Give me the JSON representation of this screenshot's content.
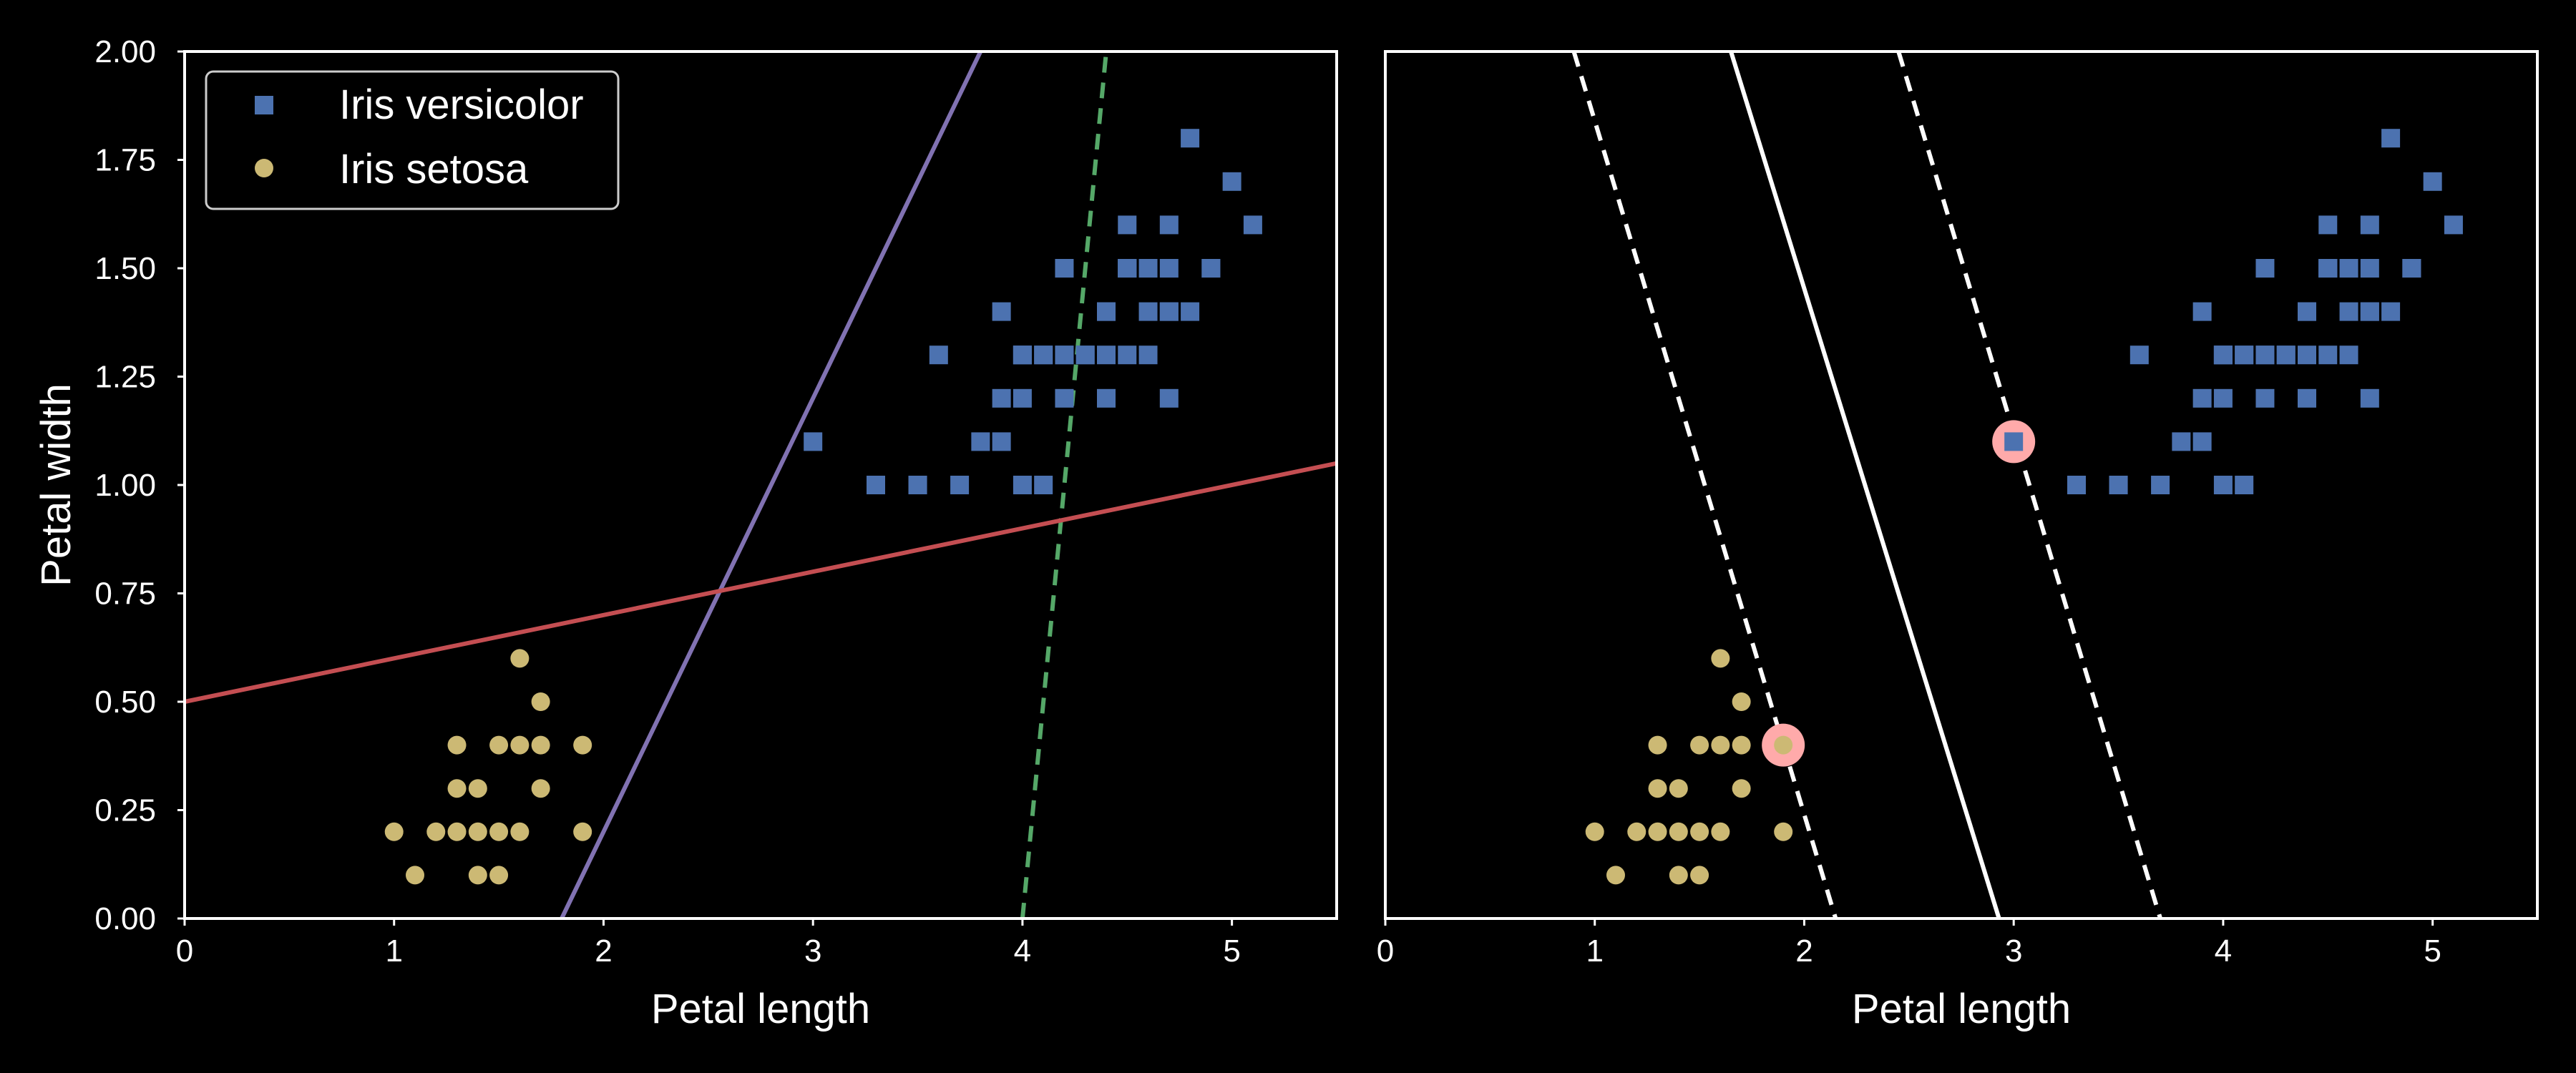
{
  "chart_data": [
    {
      "type": "scatter",
      "title": "",
      "xlabel": "Petal length",
      "ylabel": "Petal width",
      "xlim": [
        0,
        5.5
      ],
      "ylim": [
        0,
        2.0
      ],
      "x_ticks": [
        "0",
        "1",
        "2",
        "3",
        "4",
        "5"
      ],
      "y_ticks": [
        "0.00",
        "0.25",
        "0.50",
        "0.75",
        "1.00",
        "1.25",
        "1.50",
        "1.75",
        "2.00"
      ],
      "grid": false,
      "legend": {
        "placement": "top-left",
        "entries": [
          {
            "label": "Iris versicolor",
            "marker": "square",
            "color": "#4c72b0"
          },
          {
            "label": "Iris setosa",
            "marker": "circle",
            "color": "#ccb974"
          }
        ]
      },
      "series": [
        {
          "name": "Iris versicolor",
          "marker": "square",
          "color": "#4c72b0",
          "points": [
            [
              4.7,
              1.4
            ],
            [
              4.5,
              1.5
            ],
            [
              4.9,
              1.5
            ],
            [
              4.0,
              1.3
            ],
            [
              4.6,
              1.5
            ],
            [
              4.5,
              1.3
            ],
            [
              4.7,
              1.6
            ],
            [
              3.3,
              1.0
            ],
            [
              4.6,
              1.3
            ],
            [
              3.9,
              1.4
            ],
            [
              3.5,
              1.0
            ],
            [
              4.2,
              1.5
            ],
            [
              4.0,
              1.0
            ],
            [
              4.7,
              1.4
            ],
            [
              3.6,
              1.3
            ],
            [
              4.4,
              1.4
            ],
            [
              4.5,
              1.5
            ],
            [
              4.1,
              1.0
            ],
            [
              4.5,
              1.5
            ],
            [
              3.9,
              1.1
            ],
            [
              4.8,
              1.8
            ],
            [
              4.0,
              1.3
            ],
            [
              4.9,
              1.5
            ],
            [
              4.7,
              1.2
            ],
            [
              4.3,
              1.3
            ],
            [
              4.4,
              1.4
            ],
            [
              4.8,
              1.4
            ],
            [
              5.0,
              1.7
            ],
            [
              4.5,
              1.5
            ],
            [
              3.5,
              1.0
            ],
            [
              3.8,
              1.1
            ],
            [
              3.7,
              1.0
            ],
            [
              3.9,
              1.2
            ],
            [
              5.1,
              1.6
            ],
            [
              4.5,
              1.5
            ],
            [
              4.5,
              1.6
            ],
            [
              4.7,
              1.5
            ],
            [
              4.4,
              1.3
            ],
            [
              4.1,
              1.3
            ],
            [
              4.0,
              1.3
            ],
            [
              4.4,
              1.2
            ],
            [
              4.6,
              1.4
            ],
            [
              4.0,
              1.2
            ],
            [
              3.3,
              1.0
            ],
            [
              4.2,
              1.3
            ],
            [
              4.2,
              1.2
            ],
            [
              4.2,
              1.3
            ],
            [
              4.3,
              1.3
            ],
            [
              3.0,
              1.1
            ],
            [
              4.1,
              1.3
            ]
          ]
        },
        {
          "name": "Iris setosa",
          "marker": "circle",
          "color": "#ccb974",
          "points": [
            [
              1.4,
              0.2
            ],
            [
              1.3,
              0.2
            ],
            [
              1.5,
              0.2
            ],
            [
              1.7,
              0.4
            ],
            [
              1.4,
              0.3
            ],
            [
              1.5,
              0.1
            ],
            [
              1.6,
              0.2
            ],
            [
              1.1,
              0.1
            ],
            [
              1.2,
              0.2
            ],
            [
              1.0,
              0.2
            ],
            [
              1.7,
              0.5
            ],
            [
              1.9,
              0.2
            ],
            [
              1.6,
              0.4
            ],
            [
              1.3,
              0.4
            ],
            [
              1.6,
              0.6
            ],
            [
              1.9,
              0.4
            ],
            [
              1.3,
              0.3
            ],
            [
              1.5,
              0.4
            ],
            [
              1.7,
              0.3
            ],
            [
              1.4,
              0.1
            ]
          ]
        }
      ],
      "lines": [
        {
          "style": "solid",
          "color": "#8172b2",
          "p1": [
            1.8,
            0.0
          ],
          "p2": [
            3.8,
            2.0
          ]
        },
        {
          "style": "dashed",
          "color": "#55a868",
          "p1": [
            4.0,
            0.0
          ],
          "p2": [
            4.4,
            2.0
          ]
        },
        {
          "style": "solid",
          "color": "#c44e52",
          "p1": [
            0.0,
            0.5
          ],
          "p2": [
            5.5,
            1.05
          ]
        }
      ]
    },
    {
      "type": "scatter",
      "title": "",
      "xlabel": "Petal length",
      "ylabel": "",
      "xlim": [
        0,
        5.5
      ],
      "ylim": [
        0,
        2.0
      ],
      "x_ticks": [
        "0",
        "1",
        "2",
        "3",
        "4",
        "5"
      ],
      "y_ticks": [],
      "grid": false,
      "series": [
        {
          "name": "",
          "marker": "square",
          "color": "#4c72b0",
          "points_ref": "same as left panel"
        },
        {
          "name": "",
          "marker": "circle",
          "color": "#ccb974",
          "points_ref": "same as left panel"
        }
      ],
      "lines": [
        {
          "style": "solid",
          "color": "#ffffff",
          "p1": [
            1.65,
            2.0
          ],
          "p2": [
            2.93,
            0.0
          ]
        },
        {
          "style": "dashed",
          "color": "#ffffff",
          "p1": [
            0.9,
            2.0
          ],
          "p2": [
            2.15,
            0.0
          ]
        },
        {
          "style": "dashed",
          "color": "#ffffff",
          "p1": [
            2.45,
            2.0
          ],
          "p2": [
            3.7,
            0.0
          ]
        }
      ],
      "support_vectors": {
        "color": "#ffaaaa",
        "points": [
          [
            3.0,
            1.1
          ],
          [
            1.9,
            0.4
          ]
        ]
      }
    }
  ]
}
